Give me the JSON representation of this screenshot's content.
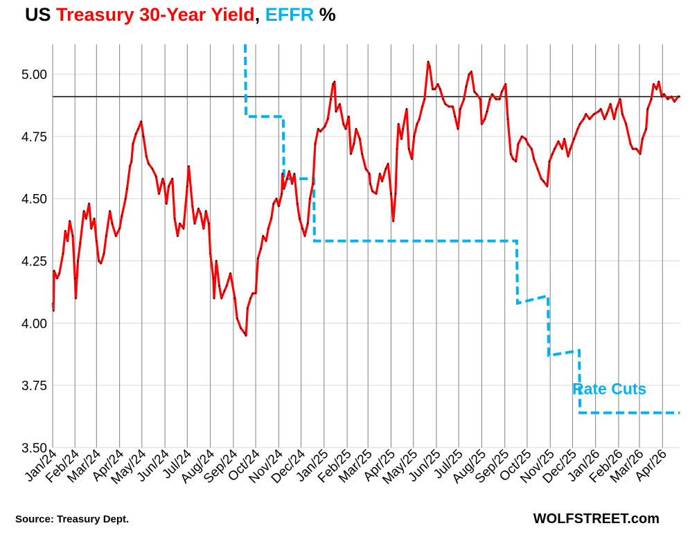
{
  "title": {
    "prefix": "US ",
    "series1": "Treasury 30-Year Yield",
    "sep": ", ",
    "series2": "EFFR",
    "suffix": " %"
  },
  "source": "Source: Treasury Dept.",
  "brand": "WOLFSTREET.com",
  "annotation": "Rate Cuts",
  "colors": {
    "yield": "#ff0000",
    "effr": "#00b0f0",
    "reference": "#000000",
    "grid": "#d9d9d9",
    "month_line": "#808080"
  },
  "chart_data": {
    "type": "line",
    "x_axis": "date",
    "xlim": [
      "2024-01-02",
      "2026-04-24"
    ],
    "ylim": [
      3.5,
      5.12
    ],
    "yticks": [
      "3.50",
      "3.75",
      "4.00",
      "4.25",
      "4.50",
      "4.75",
      "5.00"
    ],
    "xtick_labels": [
      "Jan/24",
      "Feb/24",
      "Mar/24",
      "Apr/24",
      "May/24",
      "Jun/24",
      "Jul/24",
      "Aug/24",
      "Sep/24",
      "Oct/24",
      "Nov/24",
      "Dec/24",
      "Jan/25",
      "Feb/25",
      "Mar/25",
      "Apr/25",
      "May/25",
      "Jun/25",
      "Jul/25",
      "Aug/25",
      "Sep/25",
      "Oct/25",
      "Nov/25",
      "Dec/25",
      "Jan/26",
      "Feb/26",
      "Mar/26",
      "Apr/26"
    ],
    "reference_line": 4.91,
    "grid": "horizontal and monthly vertical",
    "series": [
      {
        "name": "Treasury 30-Year Yield",
        "style": "solid",
        "points": [
          [
            "2024-01-02",
            4.08
          ],
          [
            "2024-01-03",
            4.05
          ],
          [
            "2024-01-04",
            4.21
          ],
          [
            "2024-01-08",
            4.18
          ],
          [
            "2024-01-11",
            4.2
          ],
          [
            "2024-01-16",
            4.28
          ],
          [
            "2024-01-19",
            4.37
          ],
          [
            "2024-01-22",
            4.33
          ],
          [
            "2024-01-25",
            4.41
          ],
          [
            "2024-01-29",
            4.35
          ],
          [
            "2024-02-01",
            4.18
          ],
          [
            "2024-02-02",
            4.1
          ],
          [
            "2024-02-05",
            4.25
          ],
          [
            "2024-02-08",
            4.32
          ],
          [
            "2024-02-13",
            4.45
          ],
          [
            "2024-02-16",
            4.42
          ],
          [
            "2024-02-20",
            4.48
          ],
          [
            "2024-02-23",
            4.38
          ],
          [
            "2024-02-27",
            4.42
          ],
          [
            "2024-03-01",
            4.33
          ],
          [
            "2024-03-04",
            4.25
          ],
          [
            "2024-03-07",
            4.24
          ],
          [
            "2024-03-11",
            4.28
          ],
          [
            "2024-03-14",
            4.35
          ],
          [
            "2024-03-19",
            4.45
          ],
          [
            "2024-03-22",
            4.4
          ],
          [
            "2024-03-27",
            4.35
          ],
          [
            "2024-04-01",
            4.38
          ],
          [
            "2024-04-04",
            4.43
          ],
          [
            "2024-04-09",
            4.5
          ],
          [
            "2024-04-11",
            4.54
          ],
          [
            "2024-04-15",
            4.63
          ],
          [
            "2024-04-17",
            4.65
          ],
          [
            "2024-04-19",
            4.72
          ],
          [
            "2024-04-23",
            4.76
          ],
          [
            "2024-04-26",
            4.78
          ],
          [
            "2024-04-30",
            4.81
          ],
          [
            "2024-05-03",
            4.75
          ],
          [
            "2024-05-07",
            4.67
          ],
          [
            "2024-05-10",
            4.64
          ],
          [
            "2024-05-15",
            4.62
          ],
          [
            "2024-05-20",
            4.59
          ],
          [
            "2024-05-24",
            4.52
          ],
          [
            "2024-05-29",
            4.58
          ],
          [
            "2024-05-31",
            4.56
          ],
          [
            "2024-06-03",
            4.48
          ],
          [
            "2024-06-06",
            4.55
          ],
          [
            "2024-06-11",
            4.58
          ],
          [
            "2024-06-14",
            4.42
          ],
          [
            "2024-06-18",
            4.35
          ],
          [
            "2024-06-21",
            4.4
          ],
          [
            "2024-06-26",
            4.38
          ],
          [
            "2024-07-01",
            4.55
          ],
          [
            "2024-07-03",
            4.63
          ],
          [
            "2024-07-08",
            4.47
          ],
          [
            "2024-07-11",
            4.4
          ],
          [
            "2024-07-16",
            4.46
          ],
          [
            "2024-07-19",
            4.44
          ],
          [
            "2024-07-23",
            4.38
          ],
          [
            "2024-07-26",
            4.45
          ],
          [
            "2024-07-30",
            4.4
          ],
          [
            "2024-08-01",
            4.28
          ],
          [
            "2024-08-05",
            4.18
          ],
          [
            "2024-08-06",
            4.1
          ],
          [
            "2024-08-09",
            4.25
          ],
          [
            "2024-08-13",
            4.15
          ],
          [
            "2024-08-16",
            4.1
          ],
          [
            "2024-08-20",
            4.13
          ],
          [
            "2024-08-23",
            4.15
          ],
          [
            "2024-08-28",
            4.2
          ],
          [
            "2024-09-03",
            4.1
          ],
          [
            "2024-09-06",
            4.02
          ],
          [
            "2024-09-11",
            3.98
          ],
          [
            "2024-09-16",
            3.96
          ],
          [
            "2024-09-18",
            3.95
          ],
          [
            "2024-09-20",
            4.06
          ],
          [
            "2024-09-24",
            4.1
          ],
          [
            "2024-09-27",
            4.12
          ],
          [
            "2024-10-01",
            4.12
          ],
          [
            "2024-10-04",
            4.26
          ],
          [
            "2024-10-08",
            4.3
          ],
          [
            "2024-10-11",
            4.35
          ],
          [
            "2024-10-15",
            4.33
          ],
          [
            "2024-10-18",
            4.38
          ],
          [
            "2024-10-22",
            4.42
          ],
          [
            "2024-10-25",
            4.48
          ],
          [
            "2024-10-29",
            4.5
          ],
          [
            "2024-11-01",
            4.47
          ],
          [
            "2024-11-05",
            4.52
          ],
          [
            "2024-11-06",
            4.6
          ],
          [
            "2024-11-08",
            4.54
          ],
          [
            "2024-11-12",
            4.58
          ],
          [
            "2024-11-15",
            4.61
          ],
          [
            "2024-11-19",
            4.56
          ],
          [
            "2024-11-22",
            4.6
          ],
          [
            "2024-11-26",
            4.48
          ],
          [
            "2024-11-29",
            4.42
          ],
          [
            "2024-12-03",
            4.38
          ],
          [
            "2024-12-06",
            4.35
          ],
          [
            "2024-12-10",
            4.4
          ],
          [
            "2024-12-13",
            4.5
          ],
          [
            "2024-12-17",
            4.56
          ],
          [
            "2024-12-20",
            4.72
          ],
          [
            "2024-12-24",
            4.78
          ],
          [
            "2024-12-27",
            4.77
          ],
          [
            "2025-01-02",
            4.79
          ],
          [
            "2025-01-06",
            4.82
          ],
          [
            "2025-01-10",
            4.9
          ],
          [
            "2025-01-13",
            4.96
          ],
          [
            "2025-01-15",
            4.97
          ],
          [
            "2025-01-17",
            4.85
          ],
          [
            "2025-01-22",
            4.88
          ],
          [
            "2025-01-27",
            4.8
          ],
          [
            "2025-01-30",
            4.78
          ],
          [
            "2025-02-03",
            4.83
          ],
          [
            "2025-02-06",
            4.68
          ],
          [
            "2025-02-10",
            4.72
          ],
          [
            "2025-02-13",
            4.78
          ],
          [
            "2025-02-18",
            4.74
          ],
          [
            "2025-02-21",
            4.68
          ],
          [
            "2025-02-26",
            4.62
          ],
          [
            "2025-03-03",
            4.6
          ],
          [
            "2025-03-04",
            4.56
          ],
          [
            "2025-03-07",
            4.53
          ],
          [
            "2025-03-12",
            4.52
          ],
          [
            "2025-03-17",
            4.6
          ],
          [
            "2025-03-20",
            4.57
          ],
          [
            "2025-03-25",
            4.62
          ],
          [
            "2025-03-28",
            4.64
          ],
          [
            "2025-04-01",
            4.52
          ],
          [
            "2025-04-04",
            4.41
          ],
          [
            "2025-04-07",
            4.52
          ],
          [
            "2025-04-09",
            4.7
          ],
          [
            "2025-04-11",
            4.8
          ],
          [
            "2025-04-15",
            4.74
          ],
          [
            "2025-04-17",
            4.78
          ],
          [
            "2025-04-22",
            4.86
          ],
          [
            "2025-04-25",
            4.7
          ],
          [
            "2025-04-29",
            4.66
          ],
          [
            "2025-05-02",
            4.75
          ],
          [
            "2025-05-06",
            4.8
          ],
          [
            "2025-05-09",
            4.82
          ],
          [
            "2025-05-13",
            4.87
          ],
          [
            "2025-05-16",
            4.9
          ],
          [
            "2025-05-21",
            5.05
          ],
          [
            "2025-05-23",
            5.03
          ],
          [
            "2025-05-27",
            4.94
          ],
          [
            "2025-05-30",
            4.94
          ],
          [
            "2025-06-03",
            4.96
          ],
          [
            "2025-06-06",
            4.94
          ],
          [
            "2025-06-10",
            4.9
          ],
          [
            "2025-06-13",
            4.88
          ],
          [
            "2025-06-18",
            4.87
          ],
          [
            "2025-06-23",
            4.87
          ],
          [
            "2025-06-26",
            4.83
          ],
          [
            "2025-06-30",
            4.78
          ],
          [
            "2025-07-03",
            4.86
          ],
          [
            "2025-07-08",
            4.9
          ],
          [
            "2025-07-11",
            4.95
          ],
          [
            "2025-07-15",
            5.0
          ],
          [
            "2025-07-18",
            5.01
          ],
          [
            "2025-07-22",
            4.93
          ],
          [
            "2025-07-25",
            4.92
          ],
          [
            "2025-07-30",
            4.9
          ],
          [
            "2025-08-01",
            4.8
          ],
          [
            "2025-08-05",
            4.82
          ],
          [
            "2025-08-08",
            4.85
          ],
          [
            "2025-08-12",
            4.9
          ],
          [
            "2025-08-15",
            4.92
          ],
          [
            "2025-08-20",
            4.9
          ],
          [
            "2025-08-25",
            4.9
          ],
          [
            "2025-08-28",
            4.93
          ],
          [
            "2025-09-02",
            4.96
          ],
          [
            "2025-09-05",
            4.82
          ],
          [
            "2025-09-09",
            4.68
          ],
          [
            "2025-09-12",
            4.66
          ],
          [
            "2025-09-16",
            4.65
          ],
          [
            "2025-09-19",
            4.72
          ],
          [
            "2025-09-24",
            4.75
          ],
          [
            "2025-09-29",
            4.74
          ],
          [
            "2025-10-02",
            4.72
          ],
          [
            "2025-10-07",
            4.7
          ],
          [
            "2025-10-10",
            4.66
          ],
          [
            "2025-10-15",
            4.62
          ],
          [
            "2025-10-20",
            4.58
          ],
          [
            "2025-10-23",
            4.57
          ],
          [
            "2025-10-28",
            4.55
          ],
          [
            "2025-10-31",
            4.65
          ],
          [
            "2025-11-04",
            4.68
          ],
          [
            "2025-11-07",
            4.7
          ],
          [
            "2025-11-12",
            4.73
          ],
          [
            "2025-11-17",
            4.7
          ],
          [
            "2025-11-20",
            4.74
          ],
          [
            "2025-11-25",
            4.67
          ],
          [
            "2025-11-28",
            4.7
          ],
          [
            "2025-12-03",
            4.74
          ],
          [
            "2025-12-08",
            4.78
          ],
          [
            "2025-12-11",
            4.8
          ],
          [
            "2025-12-16",
            4.82
          ],
          [
            "2025-12-19",
            4.84
          ],
          [
            "2025-12-24",
            4.82
          ],
          [
            "2025-12-30",
            4.84
          ],
          [
            "2026-01-05",
            4.85
          ],
          [
            "2026-01-08",
            4.86
          ],
          [
            "2026-01-13",
            4.82
          ],
          [
            "2026-01-16",
            4.84
          ],
          [
            "2026-01-21",
            4.88
          ],
          [
            "2026-01-26",
            4.82
          ],
          [
            "2026-01-29",
            4.86
          ],
          [
            "2026-02-03",
            4.9
          ],
          [
            "2026-02-06",
            4.84
          ],
          [
            "2026-02-11",
            4.8
          ],
          [
            "2026-02-17",
            4.72
          ],
          [
            "2026-02-20",
            4.7
          ],
          [
            "2026-02-25",
            4.7
          ],
          [
            "2026-03-02",
            4.68
          ],
          [
            "2026-03-05",
            4.74
          ],
          [
            "2026-03-10",
            4.78
          ],
          [
            "2026-03-12",
            4.86
          ],
          [
            "2026-03-17",
            4.9
          ],
          [
            "2026-03-20",
            4.96
          ],
          [
            "2026-03-24",
            4.94
          ],
          [
            "2026-03-27",
            4.97
          ],
          [
            "2026-03-31",
            4.91
          ],
          [
            "2026-04-03",
            4.92
          ],
          [
            "2026-04-08",
            4.9
          ],
          [
            "2026-04-13",
            4.91
          ],
          [
            "2026-04-17",
            4.89
          ],
          [
            "2026-04-22",
            4.91
          ],
          [
            "2026-04-24",
            4.91
          ]
        ]
      },
      {
        "name": "EFFR",
        "style": "dashed",
        "points": [
          [
            "2024-09-17",
            5.12
          ],
          [
            "2024-09-18",
            4.83
          ],
          [
            "2024-11-07",
            4.83
          ],
          [
            "2024-11-08",
            4.58
          ],
          [
            "2024-12-18",
            4.58
          ],
          [
            "2024-12-19",
            4.33
          ],
          [
            "2025-09-17",
            4.33
          ],
          [
            "2025-09-18",
            4.08
          ],
          [
            "2025-10-29",
            4.11
          ],
          [
            "2025-10-30",
            3.87
          ],
          [
            "2025-12-10",
            3.89
          ],
          [
            "2025-12-11",
            3.64
          ],
          [
            "2026-04-24",
            3.64
          ]
        ]
      }
    ]
  }
}
